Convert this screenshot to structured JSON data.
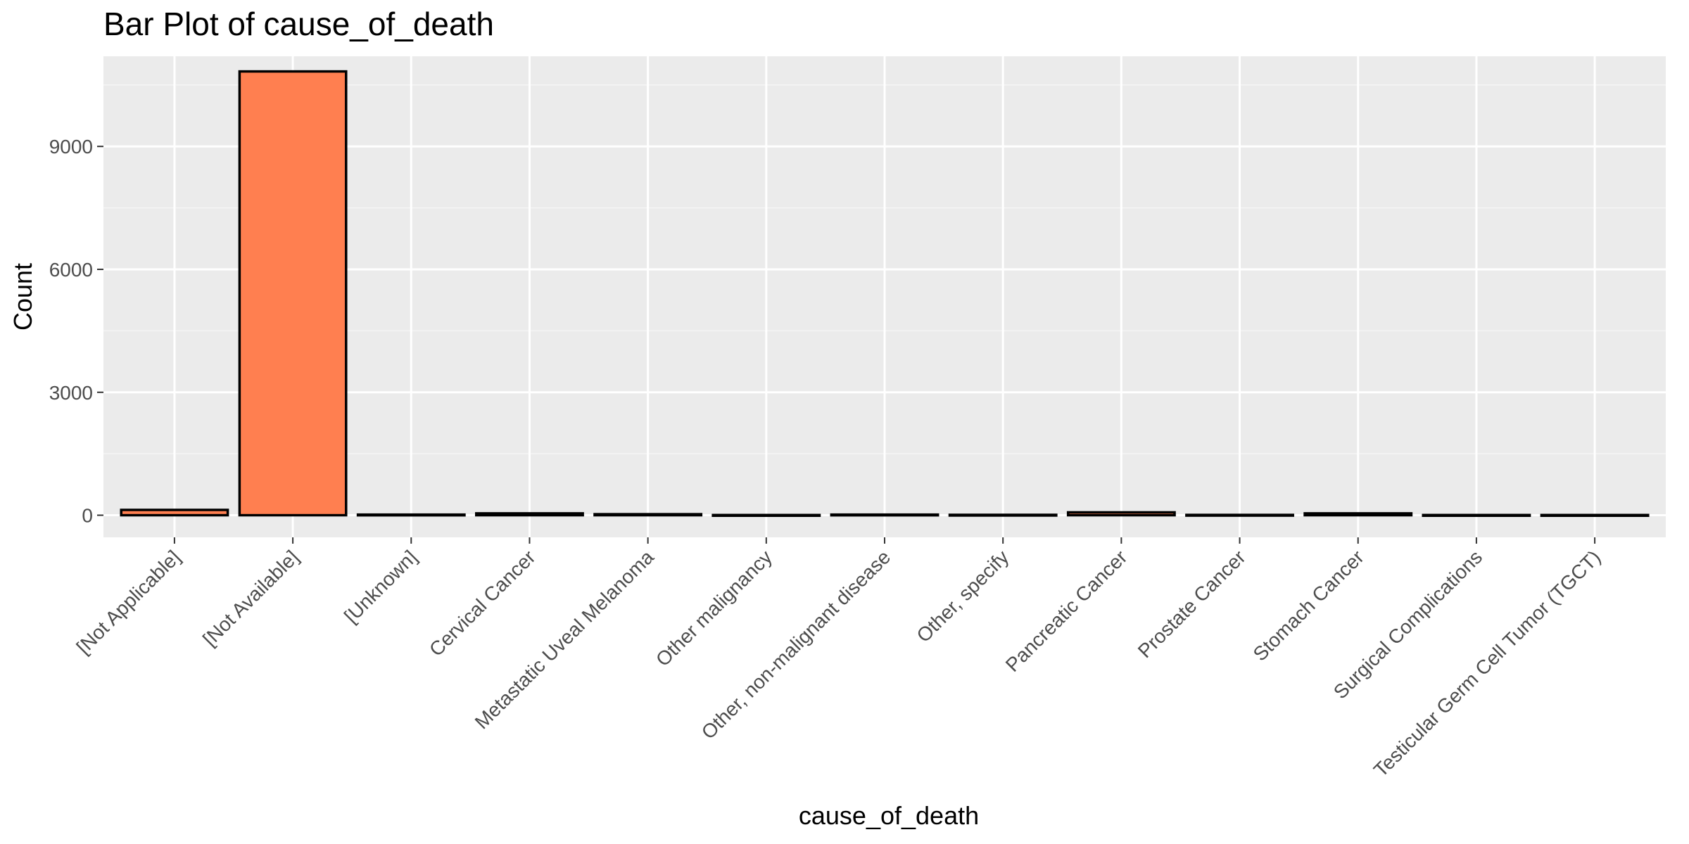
{
  "chart_data": {
    "type": "bar",
    "title": "Bar Plot of cause_of_death",
    "xlabel": "cause_of_death",
    "ylabel": "Count",
    "categories": [
      "[Not Applicable]",
      "[Not Available]",
      "[Unknown]",
      "Cervical Cancer",
      "Metastatic Uveal Melanoma",
      "Other malignancy",
      "Other, non-malignant disease",
      "Other, specify",
      "Pancreatic Cancer",
      "Prostate Cancer",
      "Stomach Cancer",
      "Surgical Complications",
      "Testicular Germ Cell Tumor (TGCT)"
    ],
    "values": [
      130,
      10830,
      15,
      45,
      25,
      5,
      15,
      10,
      70,
      8,
      45,
      5,
      5
    ],
    "ylim": [
      -540,
      11200
    ],
    "yticks": [
      0,
      3000,
      6000,
      9000
    ],
    "ytick_labels": [
      "0",
      "3000",
      "6000",
      "9000"
    ],
    "grid": true,
    "legend": "none",
    "colors": {
      "bar_fill": "#ff7f50",
      "bar_outline": "#000000",
      "panel_background": "#ebebeb",
      "grid_major": "#ffffff",
      "grid_minor": "#f5f5f5",
      "tick_label": "#4d4d4d"
    }
  }
}
